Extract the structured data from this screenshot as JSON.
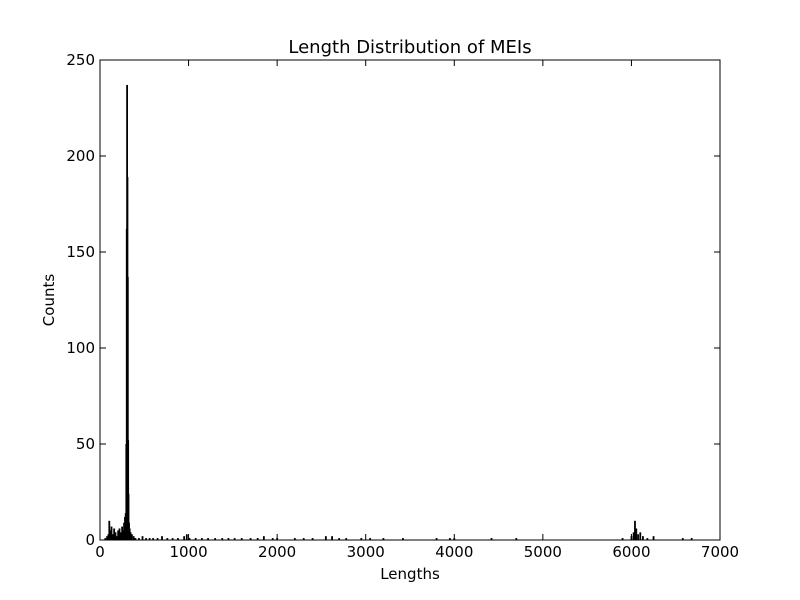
{
  "chart_data": {
    "type": "bar",
    "title": "Length Distribution of MEIs",
    "xlabel": "Lengths",
    "ylabel": "Counts",
    "xlim": [
      0,
      7000
    ],
    "ylim": [
      0,
      250
    ],
    "xticks": [
      0,
      1000,
      2000,
      3000,
      4000,
      5000,
      6000,
      7000
    ],
    "yticks": [
      0,
      50,
      100,
      150,
      200,
      250
    ],
    "grid": false,
    "bar_color": "#000000",
    "bins": [
      {
        "x": 60,
        "y": 1
      },
      {
        "x": 80,
        "y": 2
      },
      {
        "x": 95,
        "y": 3
      },
      {
        "x": 105,
        "y": 10
      },
      {
        "x": 115,
        "y": 5
      },
      {
        "x": 130,
        "y": 7
      },
      {
        "x": 145,
        "y": 3
      },
      {
        "x": 160,
        "y": 6
      },
      {
        "x": 175,
        "y": 4
      },
      {
        "x": 190,
        "y": 2
      },
      {
        "x": 205,
        "y": 5
      },
      {
        "x": 220,
        "y": 6
      },
      {
        "x": 235,
        "y": 4
      },
      {
        "x": 250,
        "y": 7
      },
      {
        "x": 262,
        "y": 5
      },
      {
        "x": 272,
        "y": 9
      },
      {
        "x": 282,
        "y": 12
      },
      {
        "x": 290,
        "y": 14
      },
      {
        "x": 297,
        "y": 50
      },
      {
        "x": 302,
        "y": 162
      },
      {
        "x": 306,
        "y": 237
      },
      {
        "x": 310,
        "y": 189
      },
      {
        "x": 314,
        "y": 137
      },
      {
        "x": 318,
        "y": 52
      },
      {
        "x": 322,
        "y": 24
      },
      {
        "x": 328,
        "y": 9
      },
      {
        "x": 335,
        "y": 6
      },
      {
        "x": 345,
        "y": 4
      },
      {
        "x": 360,
        "y": 3
      },
      {
        "x": 380,
        "y": 2
      },
      {
        "x": 400,
        "y": 1
      },
      {
        "x": 440,
        "y": 1
      },
      {
        "x": 480,
        "y": 2
      },
      {
        "x": 520,
        "y": 1
      },
      {
        "x": 560,
        "y": 1
      },
      {
        "x": 600,
        "y": 1
      },
      {
        "x": 650,
        "y": 1
      },
      {
        "x": 700,
        "y": 2
      },
      {
        "x": 760,
        "y": 1
      },
      {
        "x": 820,
        "y": 1
      },
      {
        "x": 880,
        "y": 1
      },
      {
        "x": 950,
        "y": 2
      },
      {
        "x": 980,
        "y": 3
      },
      {
        "x": 1010,
        "y": 1
      },
      {
        "x": 1080,
        "y": 1
      },
      {
        "x": 1150,
        "y": 1
      },
      {
        "x": 1220,
        "y": 1
      },
      {
        "x": 1300,
        "y": 1
      },
      {
        "x": 1380,
        "y": 1
      },
      {
        "x": 1450,
        "y": 1
      },
      {
        "x": 1520,
        "y": 1
      },
      {
        "x": 1600,
        "y": 1
      },
      {
        "x": 1700,
        "y": 1
      },
      {
        "x": 1780,
        "y": 1
      },
      {
        "x": 1850,
        "y": 2
      },
      {
        "x": 1950,
        "y": 1
      },
      {
        "x": 2000,
        "y": 1
      },
      {
        "x": 2200,
        "y": 1
      },
      {
        "x": 2300,
        "y": 1
      },
      {
        "x": 2400,
        "y": 1
      },
      {
        "x": 2550,
        "y": 2
      },
      {
        "x": 2620,
        "y": 2
      },
      {
        "x": 2700,
        "y": 1
      },
      {
        "x": 2780,
        "y": 1
      },
      {
        "x": 2950,
        "y": 1
      },
      {
        "x": 3050,
        "y": 1
      },
      {
        "x": 3200,
        "y": 1
      },
      {
        "x": 3420,
        "y": 1
      },
      {
        "x": 3800,
        "y": 1
      },
      {
        "x": 3950,
        "y": 1
      },
      {
        "x": 4000,
        "y": 1
      },
      {
        "x": 4420,
        "y": 1
      },
      {
        "x": 4700,
        "y": 1
      },
      {
        "x": 5900,
        "y": 1
      },
      {
        "x": 6000,
        "y": 2
      },
      {
        "x": 6025,
        "y": 4
      },
      {
        "x": 6040,
        "y": 10
      },
      {
        "x": 6055,
        "y": 6
      },
      {
        "x": 6075,
        "y": 3
      },
      {
        "x": 6100,
        "y": 4
      },
      {
        "x": 6130,
        "y": 2
      },
      {
        "x": 6180,
        "y": 1
      },
      {
        "x": 6250,
        "y": 2
      },
      {
        "x": 6580,
        "y": 1
      },
      {
        "x": 6680,
        "y": 1
      }
    ]
  }
}
